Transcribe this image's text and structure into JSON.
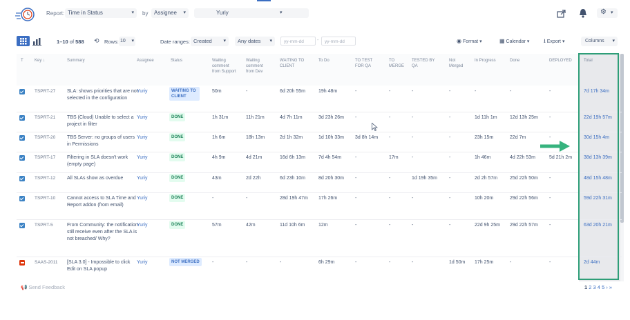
{
  "colors": {
    "accent": "#3b6ec2",
    "done_green": "#1f845a",
    "total_border": "#2e9e78",
    "arrow_green": "#36b37e",
    "not_merged_red": "#de350b"
  },
  "toolbar": {
    "report_label": "Report:",
    "report_value": "Time in Status",
    "by_label": "by",
    "by_value": "Assignee",
    "user_value": "Yuriy",
    "share_icon": "share-icon",
    "notify_icon": "megaphone-icon",
    "settings_icon": "gear-icon"
  },
  "controls": {
    "range_text": "1–10",
    "of_text": "of",
    "total_count": "588",
    "rows_label": "Rows:",
    "rows_value": "10",
    "date_ranges_label": "Date ranges:",
    "date_field": "Created",
    "any_dates": "Any dates",
    "date_from_placeholder": "yy-mm-dd",
    "date_to_placeholder": "yy-mm-dd",
    "date_separator": "-",
    "format_label": "Format",
    "calendar_label": "Calendar",
    "export_label": "Export",
    "columns_label": "Columns"
  },
  "table": {
    "headers": {
      "type": "T",
      "key": "Key ↓",
      "summary": "Summary",
      "assignee": "Assignee",
      "status": "Status",
      "waiting_support": "Waiting comment from Support",
      "waiting_dev": "Waiting comment from Dev",
      "waiting_client": "WAITING TO CLIENT",
      "todo": "To Do",
      "to_test": "TO TEST FOR QA",
      "to_merge": "TO MERGE",
      "tested": "TESTED BY QA",
      "not_merged": "Not Merged",
      "in_progress": "In Progress",
      "done": "Done",
      "deployed": "DEPLOYED",
      "total": "Total"
    },
    "rows": [
      {
        "key": "TSPRT-27",
        "summary": "SLA: shows priorities that are not selected in the configuration",
        "assignee": "Yuriy",
        "status": "WAITING TO CLIENT",
        "c1": "50m",
        "c2": "-",
        "c3": "6d 20h 55m",
        "c4": "19h 48m",
        "c5": "-",
        "c6": "-",
        "c7": "-",
        "c8": "-",
        "c9": "-",
        "c10": "-",
        "c11": "-",
        "total": "7d 17h 34m"
      },
      {
        "key": "TSPRT-21",
        "summary": "TBS (Cloud) Unable to select a project in filter",
        "assignee": "Yuriy",
        "status": "DONE",
        "c1": "1h 31m",
        "c2": "11h 21m",
        "c3": "4d 7h 11m",
        "c4": "3d 23h 26m",
        "c5": "-",
        "c6": "-",
        "c7": "-",
        "c8": "-",
        "c9": "1d 11h 1m",
        "c10": "12d 13h 25m",
        "c11": "-",
        "total": "22d 19h 57m"
      },
      {
        "key": "TSPRT-20",
        "summary": "TBS Server: no groups of users in Permissions",
        "assignee": "Yuriy",
        "status": "DONE",
        "c1": "1h 6m",
        "c2": "18h 13m",
        "c3": "2d 1h 32m",
        "c4": "1d 10h 33m",
        "c5": "3d 8h 14m",
        "c6": "-",
        "c7": "-",
        "c8": "-",
        "c9": "23h 15m",
        "c10": "22d 7m",
        "c11": "-",
        "total": "30d 15h 4m"
      },
      {
        "key": "TSPRT-17",
        "summary": "Filtering in SLA doesn't work (empty page)",
        "assignee": "Yuriy",
        "status": "DONE",
        "c1": "4h 9m",
        "c2": "4d 21m",
        "c3": "16d 6h 13m",
        "c4": "7d 4h 54m",
        "c5": "-",
        "c6": "17m",
        "c7": "-",
        "c8": "-",
        "c9": "1h 46m",
        "c10": "4d 22h 53m",
        "c11": "5d 21h 2m",
        "total": "38d 13h 39m"
      },
      {
        "key": "TSPRT-12",
        "summary": "All SLAs show as overdue",
        "assignee": "Yuriy",
        "status": "DONE",
        "c1": "43m",
        "c2": "2d 22h",
        "c3": "6d 23h 10m",
        "c4": "8d 20h 30m",
        "c5": "-",
        "c6": "-",
        "c7": "1d 19h 35m",
        "c8": "-",
        "c9": "2d 2h 57m",
        "c10": "25d 22h 50m",
        "c11": "-",
        "total": "48d 15h 48m"
      },
      {
        "key": "TSPRT-10",
        "summary": "Cannot access to SLA Time and Report addon (from email)",
        "assignee": "Yuriy",
        "status": "DONE",
        "c1": "-",
        "c2": "-",
        "c3": "28d 19h 47m",
        "c4": "17h 26m",
        "c5": "-",
        "c6": "-",
        "c7": "-",
        "c8": "-",
        "c9": "10h 20m",
        "c10": "29d 22h 56m",
        "c11": "-",
        "total": "59d 22h 31m"
      },
      {
        "key": "TSPRT-5",
        "summary": "From Community: the notification still receive even after the SLA is not breached/ Why?",
        "assignee": "Yuriy",
        "status": "DONE",
        "c1": "57m",
        "c2": "42m",
        "c3": "11d 10h 6m",
        "c4": "12m",
        "c5": "-",
        "c6": "-",
        "c7": "-",
        "c8": "-",
        "c9": "22d 9h 25m",
        "c10": "29d 22h 57m",
        "c11": "-",
        "total": "63d 20h 21m"
      },
      {
        "key": "SAAS-2011",
        "summary": "[SLA 3.0] - Impossible to click Edit on SLA popup",
        "assignee": "Yuriy",
        "status": "NOT MERGED",
        "c1": "-",
        "c2": "-",
        "c3": "-",
        "c4": "6h 29m",
        "c5": "-",
        "c6": "-",
        "c7": "-",
        "c8": "1d 50m",
        "c9": "17h 25m",
        "c10": "-",
        "c11": "-",
        "total": "2d 44m"
      }
    ]
  },
  "footer": {
    "feedback_label": "Send Feedback",
    "pages": [
      "1",
      "2",
      "3",
      "4",
      "5"
    ],
    "next": "›",
    "last": "»"
  }
}
